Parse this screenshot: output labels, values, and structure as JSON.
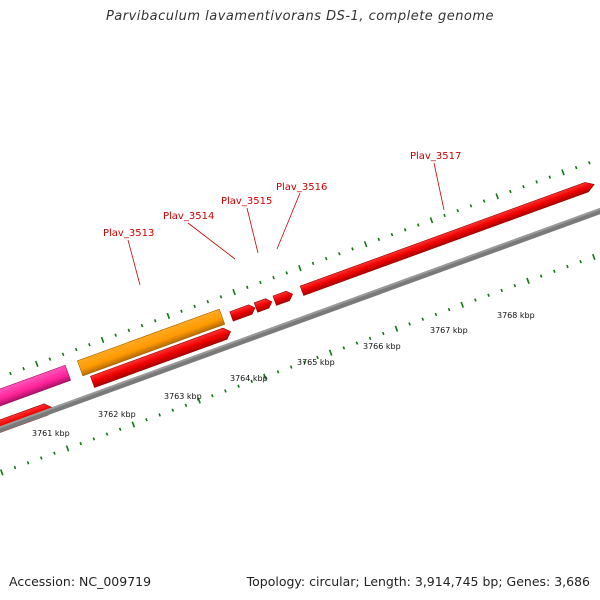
{
  "title": "Parvibaculum lavamentivorans DS-1, complete genome",
  "footer": {
    "accession": "Accession: NC_009719",
    "topology": "Topology: circular; Length: 3,914,745 bp; Genes: 3,686"
  },
  "colors": {
    "gene": "#ee0000",
    "gene_label": "#cc0000",
    "orange_feature": "#ff9900",
    "magenta_feature": "#ff33aa",
    "backbone": "#777777",
    "tick": "#117711"
  },
  "gene_labels": [
    {
      "id": "label-plav3513",
      "text": "Plav_3513"
    },
    {
      "id": "label-plav3514",
      "text": "Plav_3514"
    },
    {
      "id": "label-plav3515",
      "text": "Plav_3515"
    },
    {
      "id": "label-plav3516",
      "text": "Plav_3516"
    },
    {
      "id": "label-plav3517",
      "text": "Plav_3517"
    }
  ],
  "scale_labels": [
    "3761 kbp",
    "3762 kbp",
    "3763 kbp",
    "3764 kbp",
    "3765 kbp",
    "3766 kbp",
    "3767 kbp",
    "3768 kbp"
  ]
}
